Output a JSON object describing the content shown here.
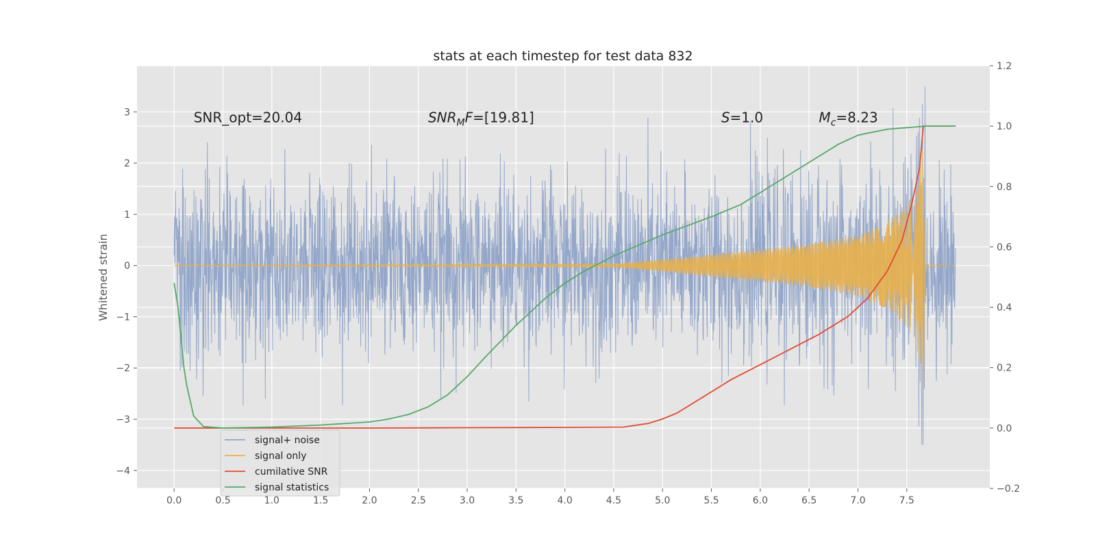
{
  "chart_data": {
    "type": "line",
    "title": "stats at each timestep for test data 832",
    "ylabel": "Whitened strain",
    "xlabel": "",
    "xlim": [
      -0.38,
      8.35
    ],
    "ylim": [
      -4.35,
      3.9
    ],
    "y2lim": [
      -0.2,
      1.2
    ],
    "x_ticks": [
      "0.0",
      "0.5",
      "1.0",
      "1.5",
      "2.0",
      "2.5",
      "3.0",
      "3.5",
      "4.0",
      "4.5",
      "5.0",
      "5.5",
      "6.0",
      "6.5",
      "7.0",
      "7.5"
    ],
    "x_tick_values": [
      0,
      0.5,
      1,
      1.5,
      2,
      2.5,
      3,
      3.5,
      4,
      4.5,
      5,
      5.5,
      6,
      6.5,
      7,
      7.5
    ],
    "y_ticks": [
      "−4",
      "−3",
      "−2",
      "−1",
      "0",
      "1",
      "2",
      "3"
    ],
    "y_tick_values": [
      -4,
      -3,
      -2,
      -1,
      0,
      1,
      2,
      3
    ],
    "y2_ticks": [
      "−0.2",
      "0.0",
      "0.2",
      "0.4",
      "0.6",
      "0.8",
      "1.0",
      "1.2"
    ],
    "y2_tick_values": [
      -0.2,
      0,
      0.2,
      0.4,
      0.6,
      0.8,
      1.0,
      1.2
    ],
    "grid": true,
    "legend_position": "lower-left",
    "annotations": [
      {
        "text": "SNR_opt=20.04",
        "x": 0.2,
        "y": 2.8
      },
      {
        "text": "SNR_MF=[19.81]",
        "x": 2.6,
        "y": 2.8,
        "main": "SNR",
        "sub": "M",
        "rest": "F=[19.81]"
      },
      {
        "text": "S=1.0",
        "x": 5.6,
        "y": 2.8,
        "main": "S",
        "rest": "=1.0"
      },
      {
        "text": "M_c=8.23",
        "x": 6.6,
        "y": 2.8,
        "main": "M",
        "sub": "c",
        "rest": "=8.23"
      }
    ],
    "series": [
      {
        "name": "signal+ noise",
        "color": "#8fa3c8",
        "axis": "left",
        "x_range": [
          0,
          8.0
        ],
        "noise_sigma": 0.85,
        "spike_max": 3.5
      },
      {
        "name": "signal only",
        "color": "#e8b04a",
        "axis": "left",
        "merger_time": 7.67,
        "envelope": {
          "t": [
            0,
            4.5,
            5.0,
            5.5,
            6.0,
            6.5,
            7.0,
            7.3,
            7.5,
            7.6,
            7.67,
            7.69,
            8.0
          ],
          "a": [
            0.01,
            0.03,
            0.12,
            0.22,
            0.32,
            0.42,
            0.6,
            0.85,
            1.2,
            1.6,
            2.4,
            0.05,
            0.0
          ]
        }
      },
      {
        "name": "cumilative SNR",
        "color": "#e24a33",
        "axis": "right",
        "x": [
          0,
          0.5,
          1.0,
          2.0,
          3.0,
          4.0,
          4.6,
          4.85,
          5.0,
          5.15,
          5.3,
          5.5,
          5.7,
          6.0,
          6.3,
          6.6,
          6.9,
          7.1,
          7.3,
          7.45,
          7.55,
          7.63,
          7.67,
          7.7,
          7.8,
          8.0
        ],
        "values": [
          0,
          0,
          0,
          0,
          0.001,
          0.002,
          0.003,
          0.015,
          0.03,
          0.05,
          0.08,
          0.12,
          0.16,
          0.21,
          0.26,
          0.31,
          0.37,
          0.43,
          0.52,
          0.62,
          0.74,
          0.86,
          1.0,
          1.0,
          1.0,
          1.0
        ]
      },
      {
        "name": "signal statistics",
        "color": "#55a868",
        "axis": "right",
        "x": [
          0,
          0.04,
          0.07,
          0.1,
          0.13,
          0.2,
          0.3,
          0.5,
          1.0,
          1.5,
          2.0,
          2.2,
          2.4,
          2.6,
          2.8,
          3.0,
          3.2,
          3.5,
          3.8,
          4.0,
          4.2,
          4.5,
          5.0,
          5.5,
          5.8,
          6.0,
          6.2,
          6.5,
          6.8,
          7.0,
          7.3,
          7.5,
          7.7,
          8.0
        ],
        "values": [
          0.48,
          0.4,
          0.3,
          0.2,
          0.14,
          0.04,
          0.005,
          0,
          0.003,
          0.01,
          0.02,
          0.03,
          0.045,
          0.07,
          0.11,
          0.17,
          0.24,
          0.34,
          0.43,
          0.48,
          0.52,
          0.57,
          0.64,
          0.7,
          0.74,
          0.78,
          0.82,
          0.88,
          0.94,
          0.97,
          0.99,
          0.995,
          1.0,
          1.0
        ]
      }
    ]
  }
}
